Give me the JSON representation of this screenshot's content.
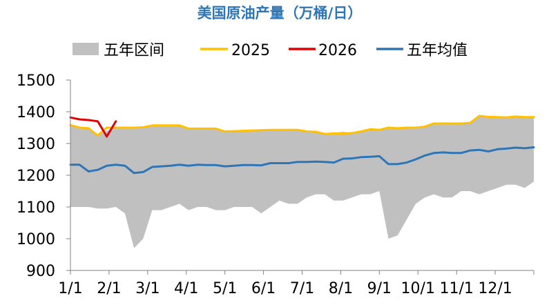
{
  "chart_data": {
    "type": "line",
    "title": "美国原油产量（万桶/日）",
    "ylim": [
      900,
      1500
    ],
    "yticks": [
      900,
      1000,
      1100,
      1200,
      1300,
      1400,
      1500
    ],
    "x_tick_labels": [
      "1/1",
      "2/1",
      "3/1",
      "4/1",
      "5/1",
      "6/1",
      "7/1",
      "8/1",
      "9/1",
      "10/1",
      "11/1",
      "12/1"
    ],
    "legend": [
      "五年区间",
      "2025",
      "2026",
      "五年均值"
    ],
    "legend_position": "top",
    "grid": false,
    "colors": {
      "range": "#c0c0c0",
      "y2025": "#ffc000",
      "y2026": "#e00000",
      "avg": "#2e75b6",
      "title": "#2e75b6"
    },
    "range_band": {
      "name": "五年区间",
      "week": [
        0,
        1,
        2,
        3,
        4,
        5,
        6,
        7,
        8,
        9,
        10,
        11,
        12,
        13,
        14,
        15,
        16,
        17,
        18,
        19,
        20,
        21,
        22,
        23,
        24,
        25,
        26,
        27,
        28,
        29,
        30,
        31,
        32,
        33,
        34,
        35,
        36,
        37,
        38,
        39,
        40,
        41,
        42,
        43,
        44,
        45,
        46,
        47,
        48,
        49,
        50,
        51
      ],
      "upper": [
        1355,
        1348,
        1350,
        1325,
        1340,
        1350,
        1350,
        1350,
        1352,
        1358,
        1358,
        1358,
        1358,
        1348,
        1348,
        1348,
        1348,
        1340,
        1340,
        1340,
        1341,
        1342,
        1343,
        1343,
        1343,
        1343,
        1340,
        1340,
        1332,
        1333,
        1337,
        1333,
        1338,
        1345,
        1345,
        1348,
        1350,
        1350,
        1352,
        1355,
        1362,
        1365,
        1365,
        1365,
        1368,
        1385,
        1383,
        1383,
        1383,
        1385,
        1385,
        1383
      ],
      "lower": [
        1100,
        1100,
        1100,
        1095,
        1095,
        1100,
        1080,
        970,
        1000,
        1090,
        1090,
        1100,
        1110,
        1090,
        1100,
        1100,
        1090,
        1090,
        1100,
        1100,
        1100,
        1080,
        1100,
        1120,
        1110,
        1110,
        1130,
        1140,
        1140,
        1120,
        1120,
        1130,
        1140,
        1140,
        1150,
        1000,
        1010,
        1060,
        1110,
        1130,
        1140,
        1130,
        1130,
        1150,
        1150,
        1140,
        1150,
        1160,
        1170,
        1170,
        1160,
        1180
      ]
    },
    "series": [
      {
        "name": "2025",
        "x": [
          0,
          1,
          2,
          3,
          4,
          5,
          6,
          7,
          8,
          9,
          10,
          11,
          12,
          13,
          14,
          15,
          16,
          17,
          18,
          19,
          20,
          21,
          22,
          23,
          24,
          25,
          26,
          27,
          28,
          29,
          30,
          31,
          32,
          33,
          34,
          35,
          36,
          37,
          38,
          39,
          40,
          41,
          42,
          43,
          44,
          45,
          46,
          47,
          48,
          49,
          50,
          51
        ],
        "values": [
          1358,
          1350,
          1348,
          1325,
          1350,
          1350,
          1350,
          1350,
          1351,
          1357,
          1357,
          1357,
          1357,
          1347,
          1347,
          1347,
          1347,
          1338,
          1339,
          1340,
          1341,
          1342,
          1343,
          1343,
          1343,
          1343,
          1338,
          1337,
          1330,
          1332,
          1331,
          1333,
          1338,
          1345,
          1343,
          1350,
          1348,
          1350,
          1350,
          1353,
          1363,
          1363,
          1363,
          1363,
          1365,
          1387,
          1384,
          1383,
          1382,
          1385,
          1383,
          1383
        ]
      },
      {
        "name": "2026",
        "x": [
          0,
          1,
          2,
          3,
          4,
          5
        ],
        "values": [
          1382,
          1376,
          1374,
          1370,
          1322,
          1370
        ]
      },
      {
        "name": "五年均值",
        "x": [
          0,
          1,
          2,
          3,
          4,
          5,
          6,
          7,
          8,
          9,
          10,
          11,
          12,
          13,
          14,
          15,
          16,
          17,
          18,
          19,
          20,
          21,
          22,
          23,
          24,
          25,
          26,
          27,
          28,
          29,
          30,
          31,
          32,
          33,
          34,
          35,
          36,
          37,
          38,
          39,
          40,
          41,
          42,
          43,
          44,
          45,
          46,
          47,
          48,
          49,
          50,
          51
        ],
        "values": [
          1233,
          1233,
          1212,
          1217,
          1230,
          1233,
          1230,
          1207,
          1210,
          1226,
          1228,
          1230,
          1233,
          1230,
          1233,
          1232,
          1232,
          1228,
          1230,
          1232,
          1232,
          1231,
          1238,
          1238,
          1238,
          1242,
          1242,
          1243,
          1242,
          1240,
          1252,
          1253,
          1257,
          1258,
          1260,
          1235,
          1235,
          1240,
          1250,
          1262,
          1270,
          1272,
          1270,
          1270,
          1278,
          1280,
          1275,
          1282,
          1284,
          1287,
          1285,
          1288
        ]
      }
    ]
  }
}
